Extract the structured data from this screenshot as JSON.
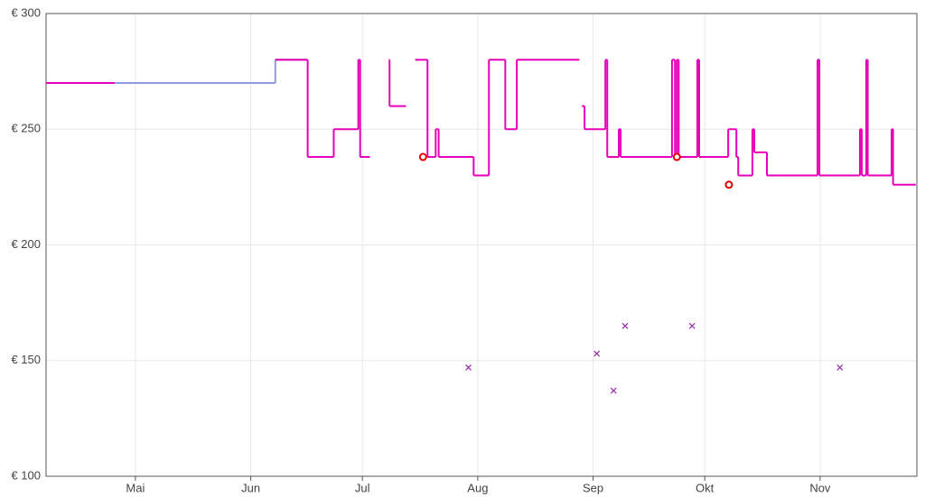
{
  "chart_data": {
    "type": "step",
    "xlim": [
      97,
      331
    ],
    "ylim": [
      100,
      300
    ],
    "xticks": [
      {
        "value": 121,
        "label": "Mai"
      },
      {
        "value": 152,
        "label": "Jun"
      },
      {
        "value": 182,
        "label": "Jul"
      },
      {
        "value": 213,
        "label": "Aug"
      },
      {
        "value": 244,
        "label": "Sep"
      },
      {
        "value": 274,
        "label": "Okt"
      },
      {
        "value": 305,
        "label": "Nov"
      }
    ],
    "yticks": [
      {
        "value": 100,
        "label": "€ 100"
      },
      {
        "value": 150,
        "label": "€ 150"
      },
      {
        "value": 200,
        "label": "€ 200"
      },
      {
        "value": 250,
        "label": "€ 250"
      },
      {
        "value": 300,
        "label": "€ 300"
      }
    ],
    "grid": true,
    "series": [
      {
        "color": "#8c9be0",
        "x": [
          97,
          158.6,
          167.3
        ],
        "values": [
          270,
          280,
          280
        ]
      },
      {
        "color": "#e800b8",
        "x": [
          97,
          115.4,
          158.6,
          167.3,
          174.3,
          180.9,
          181.4,
          184.0,
          189.1,
          189.3,
          193.7,
          196.2,
          199.5,
          201.7,
          202.5,
          211.9,
          216.0,
          220.4,
          223.5,
          240.3,
          241.0,
          241.7,
          247.3,
          247.8,
          250.9,
          251.4,
          265.2,
          266.0,
          266.5,
          267.0,
          272.0,
          272.5,
          280.3,
          282.5,
          283.0,
          286.8,
          287.3,
          290.7,
          304.3,
          304.8,
          315.7,
          316.2,
          317.4,
          317.8,
          324.2,
          324.6,
          330.7
        ],
        "values": [
          270,
          null,
          280,
          238,
          250,
          280,
          238,
          null,
          280,
          260,
          null,
          280,
          238,
          250,
          238,
          230,
          280,
          250,
          280,
          null,
          260,
          250,
          280,
          238,
          250,
          238,
          280,
          238,
          280,
          238,
          280,
          238,
          250,
          238,
          230,
          250,
          240,
          230,
          280,
          230,
          250,
          230,
          280,
          230,
          250,
          226,
          226
        ]
      }
    ],
    "markers": [
      {
        "shape": "circle",
        "color": "#e00000",
        "x": [
          198.3,
          266.5,
          280.5
        ],
        "values": [
          238,
          238,
          226
        ]
      },
      {
        "shape": "cross",
        "color": "#9933aa",
        "x": [
          210.5,
          245.0,
          249.5,
          252.6,
          270.6,
          310.3
        ],
        "values": [
          147,
          153,
          137,
          165,
          165,
          147
        ]
      }
    ]
  }
}
